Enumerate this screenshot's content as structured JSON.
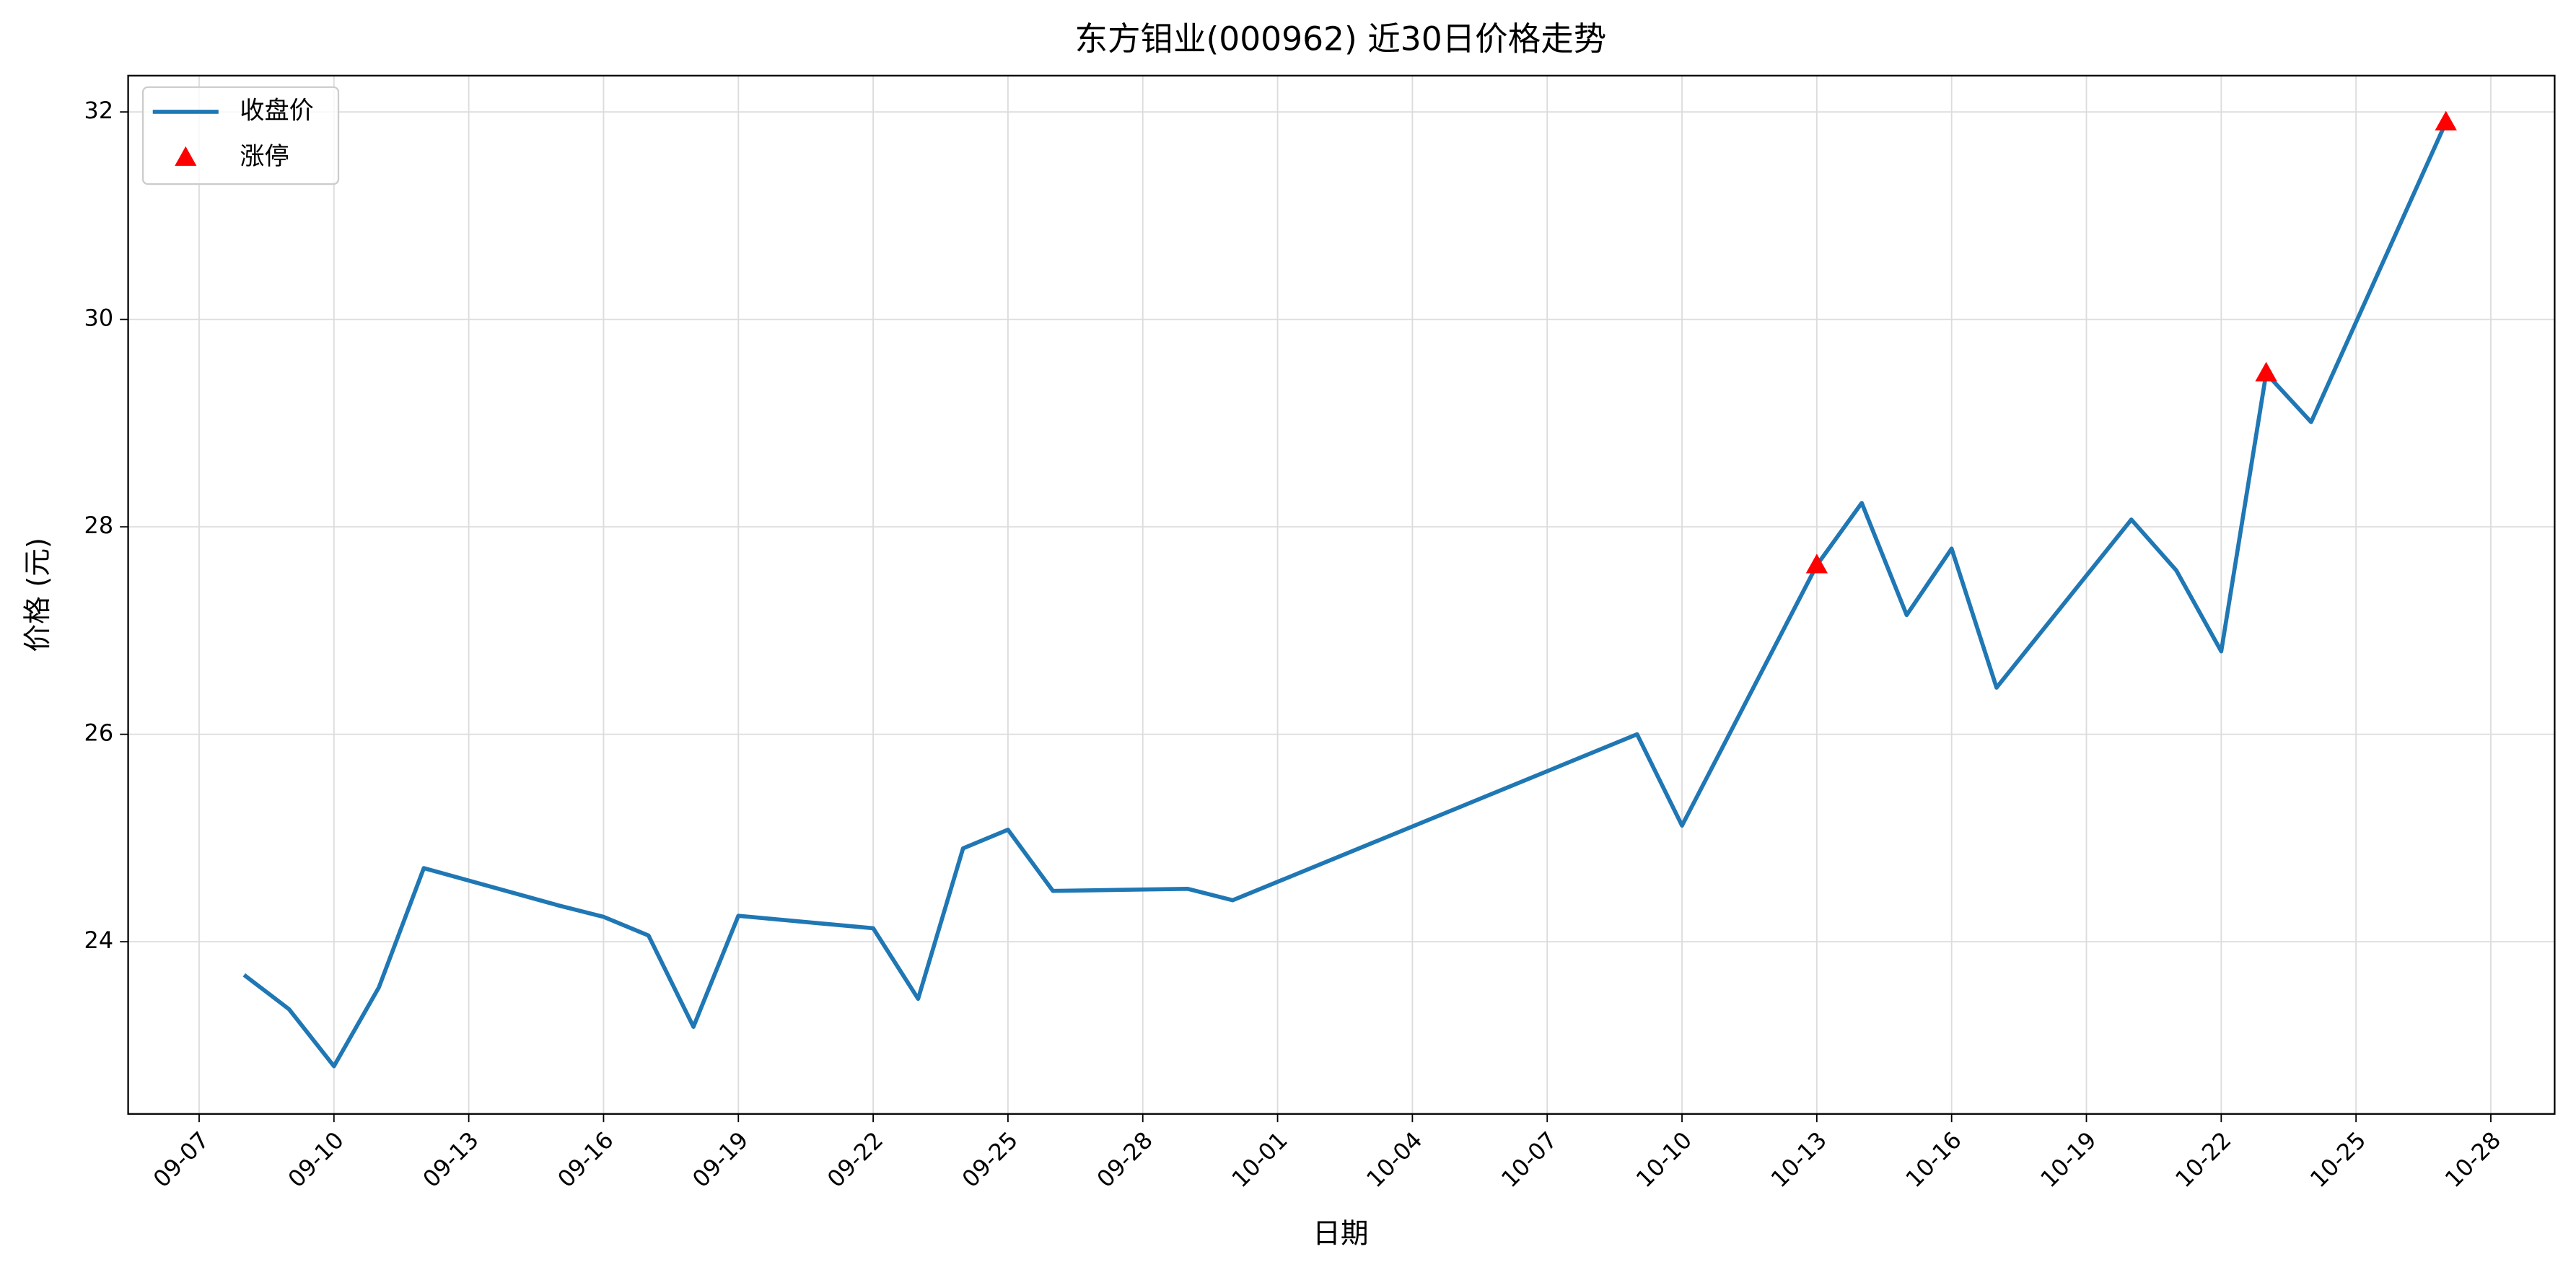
{
  "chart_data": {
    "type": "line",
    "title": "东方钼业(000962) 近30日价格走势",
    "xlabel": "日期",
    "ylabel": "价格 (元)",
    "series": [
      {
        "name": "收盘价",
        "type": "line",
        "color": "#1f77b4",
        "x": [
          "09-08",
          "09-09",
          "09-10",
          "09-11",
          "09-12",
          "09-15",
          "09-16",
          "09-17",
          "09-18",
          "09-19",
          "09-22",
          "09-23",
          "09-24",
          "09-25",
          "09-26",
          "09-29",
          "09-30",
          "10-09",
          "10-10",
          "10-13",
          "10-14",
          "10-15",
          "10-16",
          "10-17",
          "10-20",
          "10-21",
          "10-22",
          "10-23",
          "10-24",
          "10-27"
        ],
        "values": [
          23.68,
          23.35,
          22.8,
          23.56,
          24.71,
          24.35,
          24.24,
          24.06,
          23.18,
          24.25,
          24.13,
          23.45,
          24.9,
          25.08,
          24.49,
          24.51,
          24.4,
          26.0,
          25.12,
          27.63,
          28.23,
          27.15,
          27.79,
          26.45,
          28.07,
          27.58,
          26.8,
          29.48,
          29.01,
          31.9
        ]
      },
      {
        "name": "涨停",
        "type": "scatter",
        "marker": "triangle",
        "color": "#ff0000",
        "x": [
          "10-13",
          "10-23",
          "10-27"
        ],
        "values": [
          27.63,
          29.48,
          31.9
        ]
      }
    ],
    "xlim": [
      "09-06",
      "10-29"
    ],
    "xticks": [
      "09-07",
      "09-10",
      "09-13",
      "09-16",
      "09-19",
      "09-22",
      "09-25",
      "09-28",
      "10-01",
      "10-04",
      "10-07",
      "10-10",
      "10-13",
      "10-16",
      "10-19",
      "10-22",
      "10-25",
      "10-28"
    ],
    "ylim": [
      22.34,
      32.35
    ],
    "yticks": [
      24,
      26,
      28,
      30,
      32
    ],
    "grid": true,
    "legend": "upper left"
  }
}
